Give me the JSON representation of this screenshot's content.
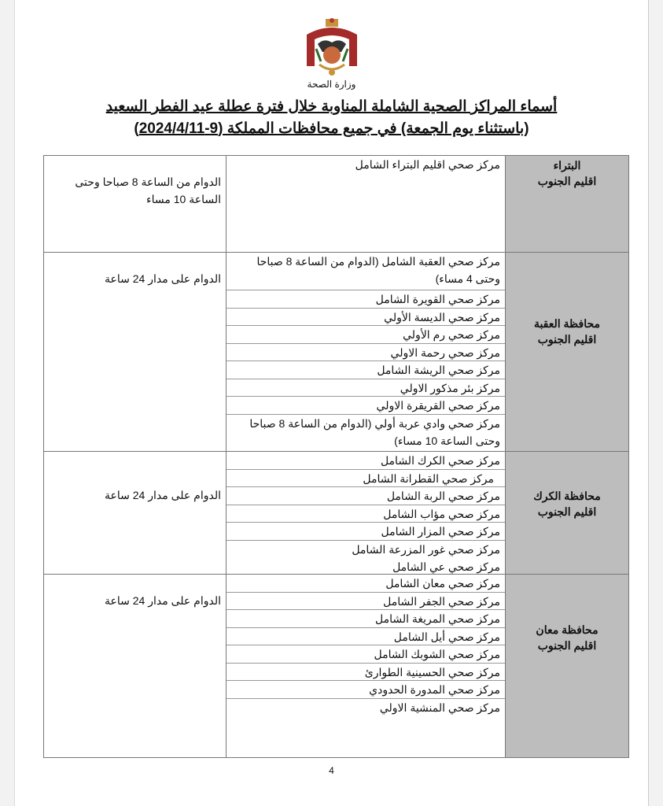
{
  "header": {
    "ministry": "وزارة الصحة",
    "title_line1": "أسماء المراكز الصحية الشاملة المناوبة خلال فترة عطلة عيد الفطر السعيد",
    "title_line2": "(باستثناء يوم الجمعة) في جميع محافظات المملكة (9-2024/4/11)"
  },
  "sections": [
    {
      "region": "البتراء",
      "subregion": "اقليم الجنوب",
      "hours": "الدوام من الساعة 8 صباحا وحتى الساعة 10 مساء",
      "centers": [
        "مركز صحي اقليم البتراء الشامل"
      ]
    },
    {
      "region": "محافظة العقبة",
      "subregion": "اقليم الجنوب",
      "hours": "الدوام على مدار 24 ساعة",
      "centers": [
        "مركز صحي العقبة الشامل (الدوام من الساعة 8 صباحا وحتى 4 مساء)",
        "مركز صحي القويرة الشامل",
        "مركز صحي الديسة الأولي",
        "مركز صحي رم الأولي",
        "مركز صحي رحمة الاولي",
        "مركز صحي الريشة الشامل",
        "مركز بئر مذكور الاولي",
        "مركز صحي القريقرة الاولي",
        "مركز صحي وادي عربة أولي (الدوام من الساعة 8 صباحا وحتى الساعة 10 مساء)"
      ]
    },
    {
      "region": "محافظة الكرك",
      "subregion": "اقليم الجنوب",
      "hours": "الدوام على مدار 24 ساعة",
      "centers": [
        "مركز صحي الكرك الشامل",
        "مركز صحي القطرانة الشامل",
        "مركز صحي الربة الشامل",
        "مركز صحي مؤاب الشامل",
        "مركز صحي المزار الشامل",
        "مركز صحي غور المزرعة الشامل",
        "مركز صحي عي الشامل"
      ]
    },
    {
      "region": "محافظة معان",
      "subregion": "اقليم الجنوب",
      "hours": "الدوام على مدار 24 ساعة",
      "centers": [
        "مركز صحي معان الشامل",
        "مركز صحي الجفر الشامل",
        "مركز صحي المريغة الشامل",
        "مركز صحي أيل الشامل",
        "مركز صحي الشوبك الشامل",
        "مركز صحي الحسينية الطوارئ",
        "مركز صحي المدورة الحدودي",
        "مركز صحي المنشية الاولي"
      ]
    }
  ],
  "page_number": "4",
  "colors": {
    "region_cell": "#bdbdbd",
    "border": "#777777"
  }
}
